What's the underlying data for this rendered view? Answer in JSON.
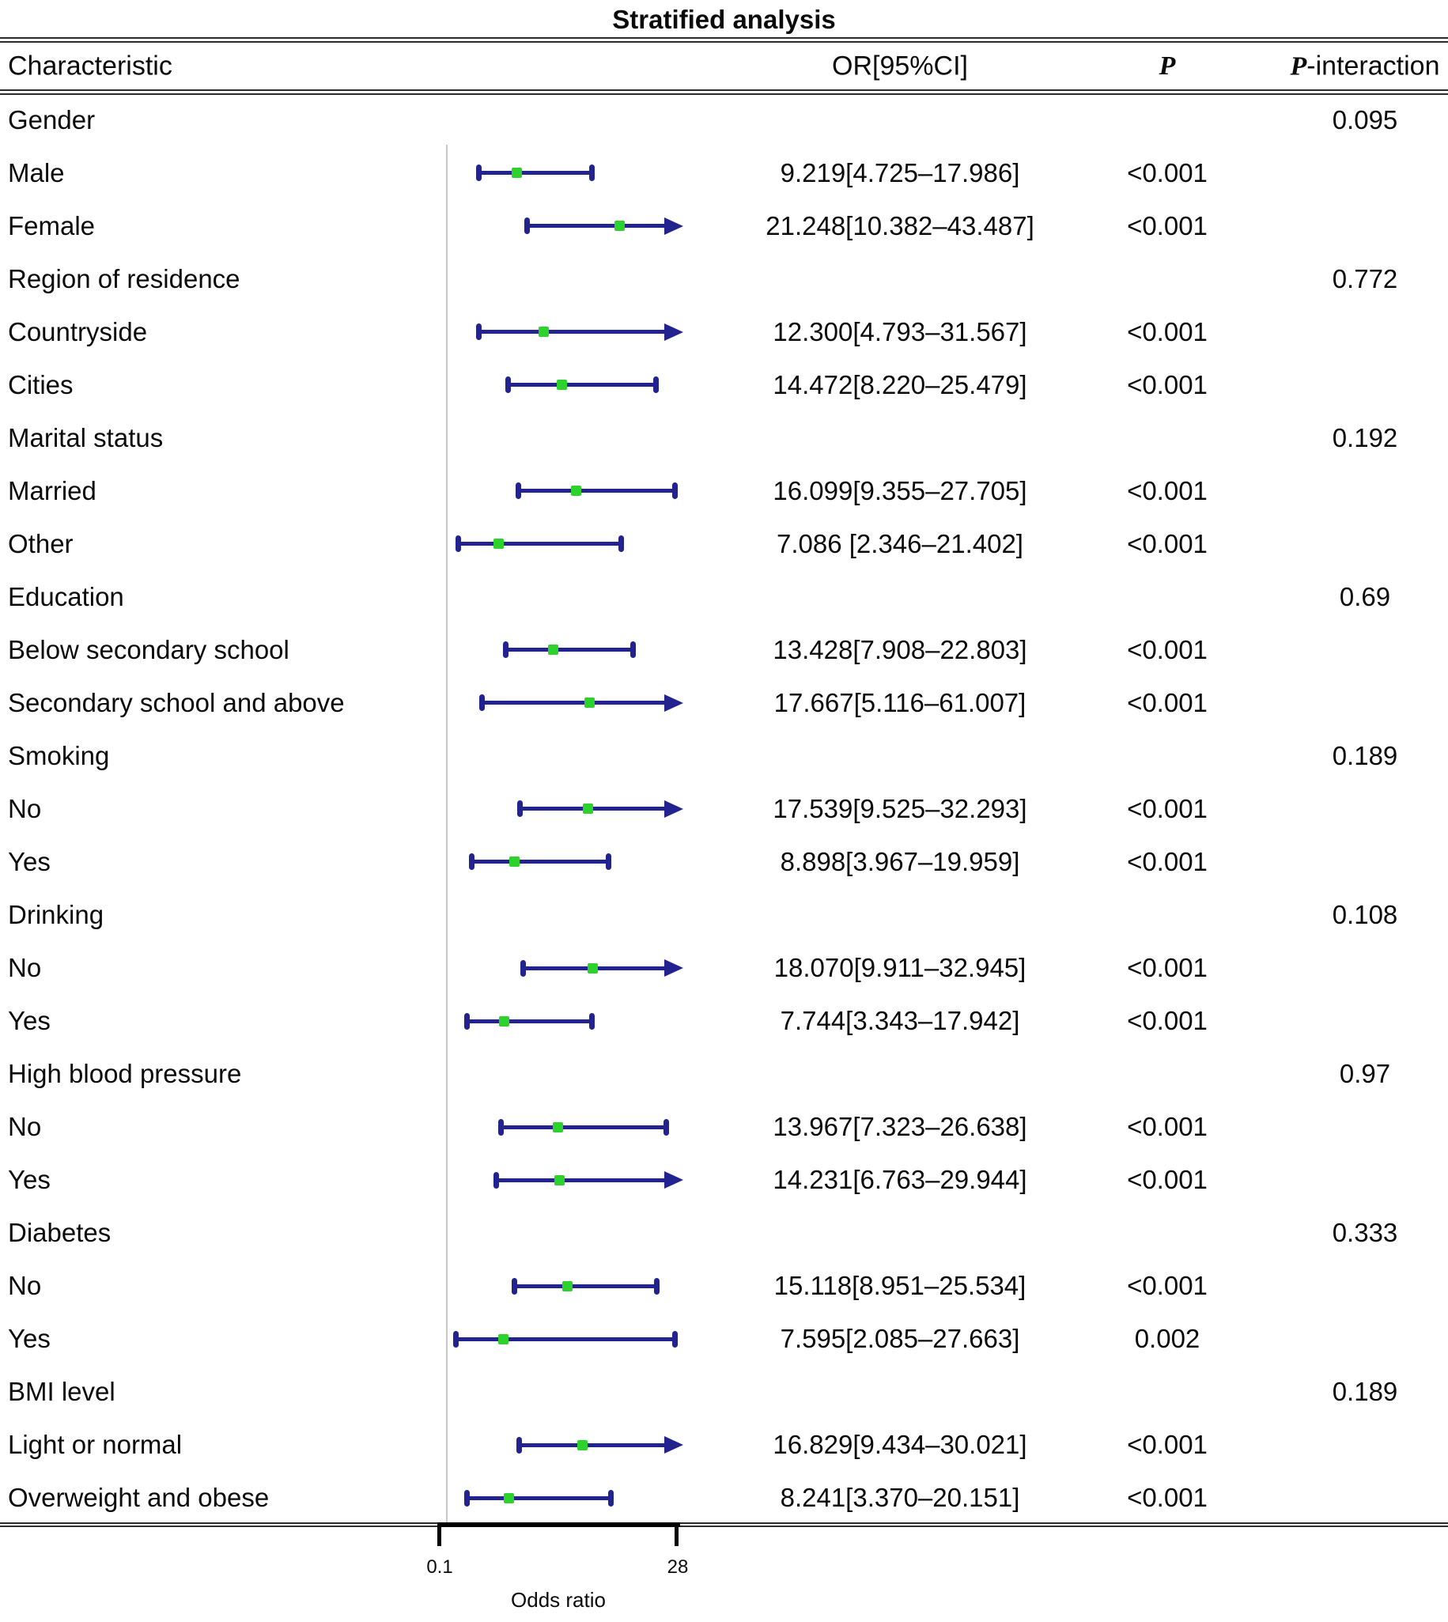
{
  "figure": {
    "title": "Stratified analysis",
    "columns": {
      "characteristic": "Characteristic",
      "or_ci": "OR[95%CI]",
      "p": "P",
      "p_interaction": "P-interaction",
      "p_interaction_prefix": "P",
      "p_interaction_suffix": "-interaction"
    }
  },
  "chart_data": {
    "type": "scatter",
    "subtype": "forest-plot",
    "title": "Stratified analysis",
    "xlabel": "Odds ratio",
    "x_axis": {
      "scale": "linear",
      "min": 0.1,
      "max": 28,
      "ticks": [
        "0.1",
        "28"
      ],
      "reference_line_at": 1
    },
    "colors": {
      "ci_bar": "#23238f",
      "point": "#2dd22d",
      "reference_line": "#c8c8c8",
      "axis": "#000000"
    },
    "rows": [
      {
        "label": "Gender",
        "group": true,
        "p_interaction": "0.095"
      },
      {
        "label": "Male",
        "or": 9.219,
        "lo": 4.725,
        "hi": 17.986,
        "ci": "9.219[4.725–17.986]",
        "p": "<0.001"
      },
      {
        "label": "Female",
        "or": 21.248,
        "lo": 10.382,
        "hi": 43.487,
        "ci": "21.248[10.382–43.487]",
        "p": "<0.001"
      },
      {
        "label": "Region of residence",
        "group": true,
        "p_interaction": "0.772"
      },
      {
        "label": "Countryside",
        "or": 12.3,
        "lo": 4.793,
        "hi": 31.567,
        "ci": "12.300[4.793–31.567]",
        "p": "<0.001"
      },
      {
        "label": "Cities",
        "or": 14.472,
        "lo": 8.22,
        "hi": 25.479,
        "ci": "14.472[8.220–25.479]",
        "p": "<0.001"
      },
      {
        "label": "Marital status",
        "group": true,
        "p_interaction": "0.192"
      },
      {
        "label": "Married",
        "or": 16.099,
        "lo": 9.355,
        "hi": 27.705,
        "ci": "16.099[9.355–27.705]",
        "p": "<0.001"
      },
      {
        "label": "Other",
        "or": 7.086,
        "lo": 2.346,
        "hi": 21.402,
        "ci": "7.086 [2.346–21.402]",
        "p": "<0.001"
      },
      {
        "label": "Education",
        "group": true,
        "p_interaction": "0.69"
      },
      {
        "label": "Below secondary school",
        "or": 13.428,
        "lo": 7.908,
        "hi": 22.803,
        "ci": "13.428[7.908–22.803]",
        "p": "<0.001"
      },
      {
        "label": "Secondary school and above",
        "or": 17.667,
        "lo": 5.116,
        "hi": 61.007,
        "ci": "17.667[5.116–61.007]",
        "p": "<0.001"
      },
      {
        "label": "Smoking",
        "group": true,
        "p_interaction": "0.189"
      },
      {
        "label": "No",
        "or": 17.539,
        "lo": 9.525,
        "hi": 32.293,
        "ci": "17.539[9.525–32.293]",
        "p": "<0.001"
      },
      {
        "label": "Yes",
        "or": 8.898,
        "lo": 3.967,
        "hi": 19.959,
        "ci": "8.898[3.967–19.959]",
        "p": "<0.001"
      },
      {
        "label": "Drinking",
        "group": true,
        "p_interaction": "0.108"
      },
      {
        "label": "No",
        "or": 18.07,
        "lo": 9.911,
        "hi": 32.945,
        "ci": "18.070[9.911–32.945]",
        "p": "<0.001"
      },
      {
        "label": "Yes",
        "or": 7.744,
        "lo": 3.343,
        "hi": 17.942,
        "ci": "7.744[3.343–17.942]",
        "p": "<0.001"
      },
      {
        "label": "High blood pressure",
        "group": true,
        "p_interaction": "0.97"
      },
      {
        "label": "No",
        "or": 13.967,
        "lo": 7.323,
        "hi": 26.638,
        "ci": "13.967[7.323–26.638]",
        "p": "<0.001"
      },
      {
        "label": "Yes",
        "or": 14.231,
        "lo": 6.763,
        "hi": 29.944,
        "ci": "14.231[6.763–29.944]",
        "p": "<0.001"
      },
      {
        "label": "Diabetes",
        "group": true,
        "p_interaction": "0.333"
      },
      {
        "label": "No",
        "or": 15.118,
        "lo": 8.951,
        "hi": 25.534,
        "ci": "15.118[8.951–25.534]",
        "p": "<0.001"
      },
      {
        "label": "Yes",
        "or": 7.595,
        "lo": 2.085,
        "hi": 27.663,
        "ci": "7.595[2.085–27.663]",
        "p": "0.002"
      },
      {
        "label": "BMI level",
        "group": true,
        "p_interaction": "0.189"
      },
      {
        "label": "Light or normal",
        "or": 16.829,
        "lo": 9.434,
        "hi": 30.021,
        "ci": "16.829[9.434–30.021]",
        "p": "<0.001"
      },
      {
        "label": "Overweight and obese",
        "or": 8.241,
        "lo": 3.37,
        "hi": 20.151,
        "ci": "8.241[3.370–20.151]",
        "p": "<0.001"
      }
    ]
  }
}
